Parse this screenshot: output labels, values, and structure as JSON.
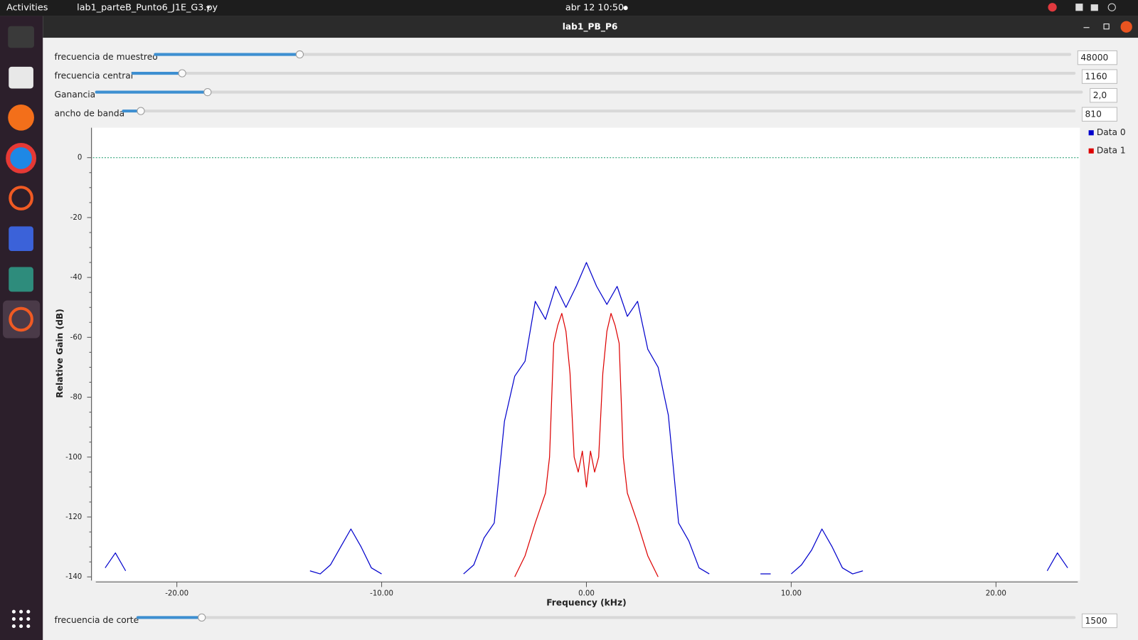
{
  "top_bar": {
    "activities": "Activities",
    "app": "lab1_parteB_Punto6_J1E_G3.py",
    "clock": "abr 12  10:50"
  },
  "window": {
    "title": "lab1_PB_P6"
  },
  "controls": [
    {
      "label": "frecuencia de muestreo",
      "value": "48000"
    },
    {
      "label": "frecuencia central",
      "value": "1160"
    },
    {
      "label": "Ganancia",
      "value": "2,0"
    },
    {
      "label": "ancho de banda",
      "value": "810"
    }
  ],
  "bottom_control": {
    "label": "frecuencia de corte",
    "value": "1500"
  },
  "chart_data": {
    "type": "line",
    "xlabel": "Frequency (kHz)",
    "ylabel": "Relative Gain (dB)",
    "xlim": [
      -24.1,
      24.1
    ],
    "ylim": [
      -140,
      10
    ],
    "xticks": [
      {
        "value": -20,
        "label": "-20.00"
      },
      {
        "value": -10,
        "label": "-10.00"
      },
      {
        "value": 0,
        "label": "0.00"
      },
      {
        "value": 10,
        "label": "10.00"
      },
      {
        "value": 20,
        "label": "20.00"
      }
    ],
    "yticks": [
      -140,
      -120,
      -100,
      -80,
      -60,
      -40,
      -20,
      0
    ],
    "reference_line": 0,
    "legend": "right",
    "series": [
      {
        "name": "Data 0",
        "color": "#0000cc",
        "x": [
          -24,
          -23.5,
          -23,
          -22.5,
          -22,
          -21.5,
          -21,
          -20.5,
          -20,
          -19.5,
          -19,
          -18.5,
          -18,
          -17.5,
          -17,
          -16.5,
          -16,
          -15.5,
          -15,
          -14.5,
          -14,
          -13.5,
          -13,
          -12.5,
          -12,
          -11.5,
          -11,
          -10.5,
          -10,
          -9.5,
          -9,
          -8.5,
          -8,
          -7.5,
          -7,
          -6.5,
          -6,
          -5.5,
          -5,
          -4.5,
          -4,
          -3.5,
          -3,
          -2.5,
          -2,
          -1.5,
          -1,
          -0.5,
          0,
          0.5,
          1,
          1.5,
          2,
          2.5,
          3,
          3.5,
          4,
          4.5,
          5,
          5.5,
          6,
          6.5,
          7,
          7.5,
          8,
          8.5,
          9,
          9.5,
          10,
          10.5,
          11,
          11.5,
          12,
          12.5,
          13,
          13.5,
          14,
          14.5,
          15,
          15.5,
          16,
          16.5,
          17,
          17.5,
          18,
          18.5,
          19,
          19.5,
          20,
          20.5,
          21,
          21.5,
          22,
          22.5,
          23,
          23.5,
          24
        ],
        "values": [
          null,
          -137,
          -132,
          -138,
          null,
          null,
          null,
          null,
          null,
          null,
          null,
          null,
          null,
          null,
          null,
          null,
          null,
          null,
          null,
          null,
          null,
          -138,
          -139,
          -136,
          -130,
          -124,
          -130,
          -137,
          -139,
          null,
          -139,
          null,
          -139,
          null,
          null,
          null,
          -139,
          -136,
          -127,
          -122,
          -88,
          -73,
          -68,
          -48,
          -54,
          -43,
          -50,
          -43,
          -35,
          -43,
          -49,
          -43,
          -53,
          -48,
          -64,
          -70,
          -86,
          -122,
          -128,
          -137,
          -139,
          null,
          null,
          -139,
          null,
          -139,
          -139,
          null,
          -139,
          -136,
          -131,
          -124,
          -130,
          -137,
          -139,
          -138,
          null,
          null,
          null,
          null,
          null,
          null,
          null,
          null,
          null,
          null,
          null,
          null,
          null,
          null,
          null,
          null,
          null,
          -138,
          -132,
          -137,
          null
        ]
      },
      {
        "name": "Data 1",
        "color": "#dd0000",
        "x": [
          -3.5,
          -3,
          -2.5,
          -2,
          -1.8,
          -1.6,
          -1.4,
          -1.2,
          -1,
          -0.8,
          -0.6,
          -0.4,
          -0.2,
          0,
          0.2,
          0.4,
          0.6,
          0.8,
          1,
          1.2,
          1.4,
          1.6,
          1.8,
          2,
          2.5,
          3,
          3.5
        ],
        "values": [
          -140,
          -133,
          -122,
          -112,
          -100,
          -62,
          -56,
          -52,
          -58,
          -72,
          -100,
          -105,
          -98,
          -110,
          -98,
          -105,
          -100,
          -72,
          -58,
          -52,
          -56,
          -62,
          -100,
          -112,
          -122,
          -133,
          -140
        ]
      }
    ]
  }
}
